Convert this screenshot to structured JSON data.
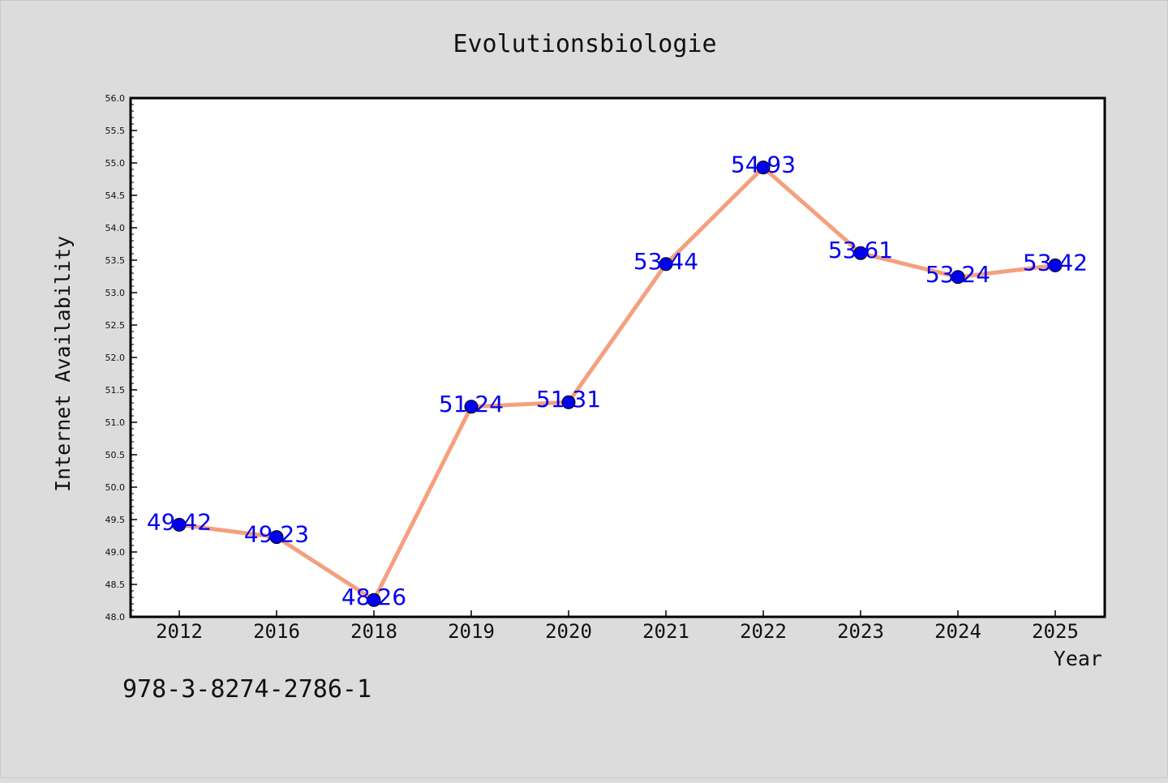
{
  "chart_data": {
    "type": "line",
    "title": "Evolutionsbiologie",
    "xlabel": "Year",
    "ylabel": "Internet Availability",
    "categories": [
      "2012",
      "2016",
      "2018",
      "2019",
      "2020",
      "2021",
      "2022",
      "2023",
      "2024",
      "2025"
    ],
    "series": [
      {
        "values": [
          49.42,
          49.23,
          48.26,
          51.24,
          51.31,
          53.44,
          54.93,
          53.61,
          53.24,
          53.42
        ],
        "line_color": "#f4a07e",
        "marker_color": "#0000ee"
      }
    ],
    "data_labels": [
      "49.42",
      "49.23",
      "48.26",
      "51.24",
      "51.31",
      "53.44",
      "54.93",
      "53.61",
      "53.24",
      "53.42"
    ],
    "ylim": [
      48.0,
      56.0
    ],
    "yticks": [
      "48.0",
      "48.5",
      "49.0",
      "49.5",
      "50.0",
      "50.5",
      "51.0",
      "51.5",
      "52.0",
      "52.5",
      "53.0",
      "53.5",
      "54.0",
      "54.5",
      "55.0",
      "55.5",
      "56.0"
    ],
    "grid": false,
    "label_color": "#0000ee"
  },
  "footer": {
    "isbn": "978-3-8274-2786-1"
  }
}
